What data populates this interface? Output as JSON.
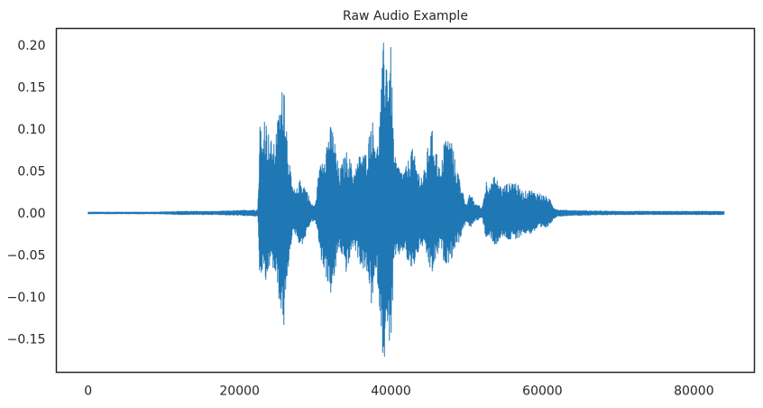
{
  "chart_data": {
    "type": "line",
    "title": "Raw Audio Example",
    "xlabel": "",
    "ylabel": "",
    "xlim": [
      -4200,
      88000
    ],
    "ylim": [
      -0.19,
      0.22
    ],
    "x_ticks": [
      0,
      20000,
      40000,
      60000,
      80000
    ],
    "x_tick_labels": [
      "0",
      "20000",
      "40000",
      "60000",
      "80000"
    ],
    "y_ticks": [
      0.2,
      0.15,
      0.1,
      0.05,
      0.0,
      -0.05,
      -0.1,
      -0.15
    ],
    "y_tick_labels": [
      "0.20",
      "0.15",
      "0.10",
      "0.05",
      "0.00",
      "−0.05",
      "−0.10",
      "−0.15"
    ],
    "grid": false,
    "series": [
      {
        "color": "#1f77b4",
        "x_start": 0,
        "x_end": 84000,
        "envelope_x": [
          0,
          9000,
          12000,
          17000,
          20000,
          22400,
          22500,
          22700,
          23000,
          23300,
          23700,
          24100,
          24500,
          25000,
          25500,
          25900,
          26200,
          26500,
          26900,
          27400,
          28000,
          28500,
          29000,
          29500,
          30000,
          30400,
          30800,
          31300,
          31900,
          32400,
          32800,
          33200,
          33700,
          34200,
          34600,
          35000,
          35500,
          36000,
          36500,
          37000,
          37400,
          37800,
          38200,
          38600,
          39000,
          39400,
          39600,
          40000,
          40400,
          40800,
          41200,
          41700,
          42200,
          42700,
          43200,
          43700,
          44200,
          44600,
          45000,
          45400,
          45800,
          46200,
          46600,
          47000,
          47500,
          48000,
          48500,
          49000,
          49500,
          50000,
          50500,
          51000,
          51600,
          52000,
          52600,
          53200,
          53700,
          54200,
          54700,
          55200,
          55600,
          56000,
          56500,
          57000,
          57500,
          58000,
          58500,
          59000,
          59500,
          60000,
          60500,
          61000,
          61400,
          62000,
          64000,
          70000,
          78000,
          84000
        ],
        "envelope_upper": [
          0.001,
          0.001,
          0.002,
          0.002,
          0.003,
          0.004,
          0.03,
          0.12,
          0.08,
          0.125,
          0.1,
          0.09,
          0.08,
          0.11,
          0.14,
          0.17,
          0.11,
          0.07,
          0.035,
          0.025,
          0.04,
          0.035,
          0.025,
          0.01,
          0.01,
          0.045,
          0.065,
          0.08,
          0.105,
          0.1,
          0.07,
          0.05,
          0.065,
          0.075,
          0.065,
          0.05,
          0.06,
          0.075,
          0.07,
          0.085,
          0.12,
          0.1,
          0.08,
          0.13,
          0.205,
          0.2,
          0.18,
          0.2,
          0.07,
          0.06,
          0.055,
          0.05,
          0.06,
          0.08,
          0.065,
          0.05,
          0.045,
          0.06,
          0.09,
          0.1,
          0.085,
          0.065,
          0.045,
          0.095,
          0.09,
          0.09,
          0.06,
          0.045,
          0.025,
          0.01,
          0.025,
          0.012,
          0.01,
          0.005,
          0.04,
          0.035,
          0.045,
          0.037,
          0.03,
          0.035,
          0.035,
          0.04,
          0.037,
          0.03,
          0.025,
          0.027,
          0.028,
          0.025,
          0.025,
          0.022,
          0.02,
          0.016,
          0.008,
          0.004,
          0.003,
          0.002,
          0.002,
          0.002
        ],
        "envelope_lower": [
          -0.001,
          -0.001,
          -0.002,
          -0.002,
          -0.003,
          -0.004,
          -0.03,
          -0.095,
          -0.07,
          -0.1,
          -0.075,
          -0.06,
          -0.07,
          -0.09,
          -0.125,
          -0.14,
          -0.1,
          -0.06,
          -0.03,
          -0.025,
          -0.04,
          -0.035,
          -0.02,
          -0.01,
          -0.01,
          -0.03,
          -0.06,
          -0.07,
          -0.1,
          -0.09,
          -0.06,
          -0.04,
          -0.06,
          -0.075,
          -0.055,
          -0.04,
          -0.05,
          -0.065,
          -0.07,
          -0.08,
          -0.11,
          -0.09,
          -0.08,
          -0.13,
          -0.18,
          -0.165,
          -0.15,
          -0.16,
          -0.06,
          -0.055,
          -0.05,
          -0.045,
          -0.06,
          -0.07,
          -0.06,
          -0.045,
          -0.04,
          -0.05,
          -0.065,
          -0.075,
          -0.06,
          -0.05,
          -0.04,
          -0.06,
          -0.06,
          -0.055,
          -0.04,
          -0.035,
          -0.02,
          -0.01,
          -0.02,
          -0.01,
          -0.008,
          -0.005,
          -0.035,
          -0.03,
          -0.04,
          -0.035,
          -0.03,
          -0.03,
          -0.035,
          -0.03,
          -0.035,
          -0.028,
          -0.025,
          -0.025,
          -0.025,
          -0.022,
          -0.02,
          -0.02,
          -0.018,
          -0.014,
          -0.008,
          -0.004,
          -0.003,
          -0.002,
          -0.002,
          -0.002
        ]
      }
    ]
  }
}
